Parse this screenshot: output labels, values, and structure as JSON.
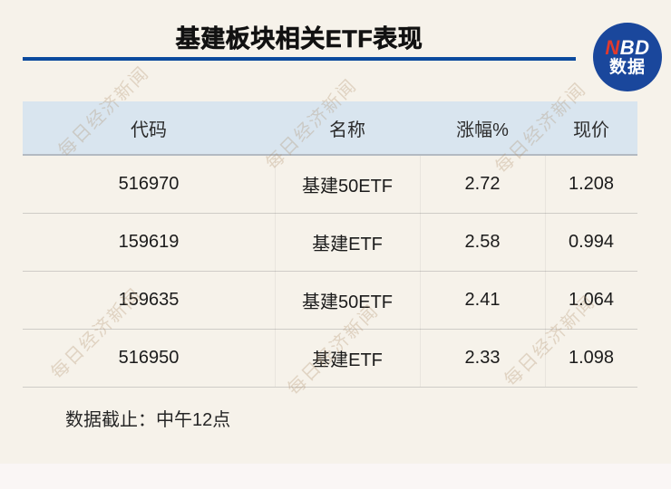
{
  "page": {
    "background": "#f6f2ea",
    "bottom_strip_color": "#faf6f5"
  },
  "header": {
    "title": "基建板块相关ETF表现",
    "underline_color": "#0b4a9d",
    "logo": {
      "n": "N",
      "bd": "BD",
      "line2": "数据",
      "circle_color": "#1a479c",
      "n_color": "#e23a2c",
      "text_color": "#ffffff"
    }
  },
  "chart_data": {
    "type": "table",
    "title": "基建板块相关ETF表现",
    "columns": [
      "代码",
      "名称",
      "涨幅%",
      "现价"
    ],
    "rows": [
      [
        "516970",
        "基建50ETF",
        "2.72",
        "1.208"
      ],
      [
        "159619",
        "基建ETF",
        "2.58",
        "0.994"
      ],
      [
        "159635",
        "基建50ETF",
        "2.41",
        "1.064"
      ],
      [
        "516950",
        "基建ETF",
        "2.33",
        "1.098"
      ]
    ],
    "header_bg": "#d9e5ef",
    "note": "数据截止：中午12点"
  },
  "footer": {
    "note": "数据截止：中午12点"
  },
  "watermark": {
    "text": "每日经济新闻",
    "color": "rgba(172,140,104,0.30)"
  }
}
